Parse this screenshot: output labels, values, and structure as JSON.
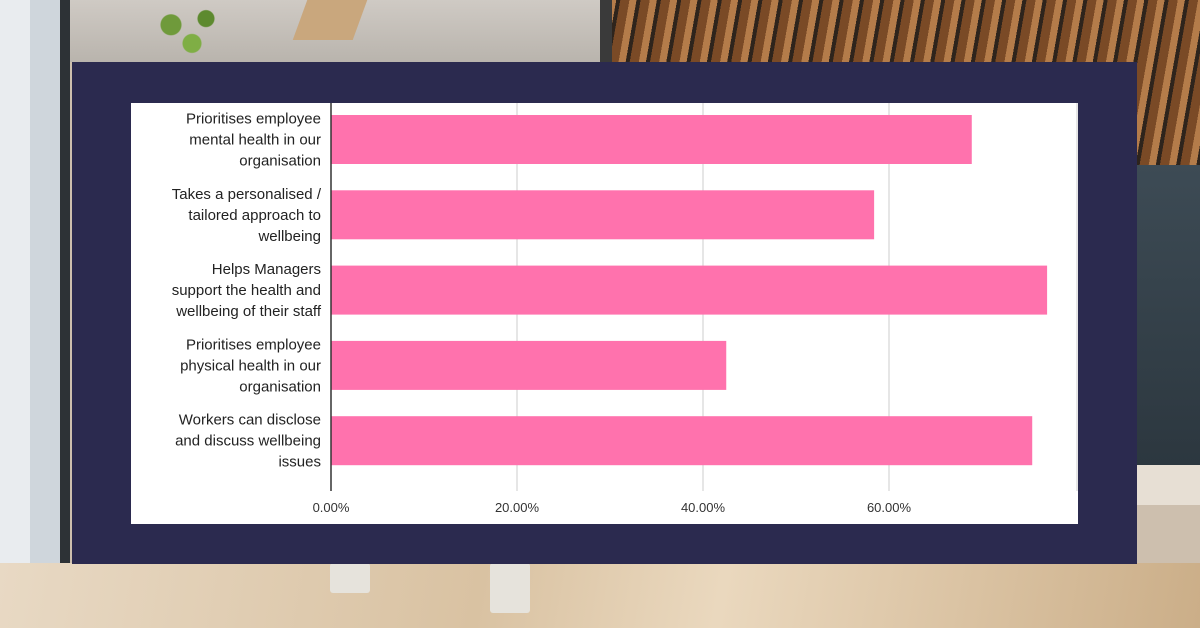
{
  "colors": {
    "frame": "#2b2a4f",
    "bar": "#ff72ad",
    "grid": "#cccccc",
    "axis": "#333333"
  },
  "chart_data": {
    "type": "bar",
    "orientation": "horizontal",
    "title": "",
    "xlabel": "",
    "ylabel": "",
    "categories": [
      [
        "Prioritises employee",
        "mental health in our",
        "organisation"
      ],
      [
        "Takes a personalised /",
        "tailored approach to",
        "wellbeing"
      ],
      [
        "Helps Managers",
        "support the health and",
        "wellbeing of their staff"
      ],
      [
        "Prioritises employee",
        "physical health in our",
        "organisation"
      ],
      [
        "Workers can disclose",
        "and discuss wellbeing",
        "issues"
      ]
    ],
    "values": [
      68.9,
      58.4,
      77.0,
      42.5,
      75.4
    ],
    "value_unit": "percent",
    "xlim": [
      0,
      80
    ],
    "xticks": [
      0,
      20,
      40,
      60
    ],
    "xtick_labels": [
      "0.00%",
      "20.00%",
      "40.00%",
      "60.00%"
    ],
    "grid": true,
    "legend": "none"
  }
}
